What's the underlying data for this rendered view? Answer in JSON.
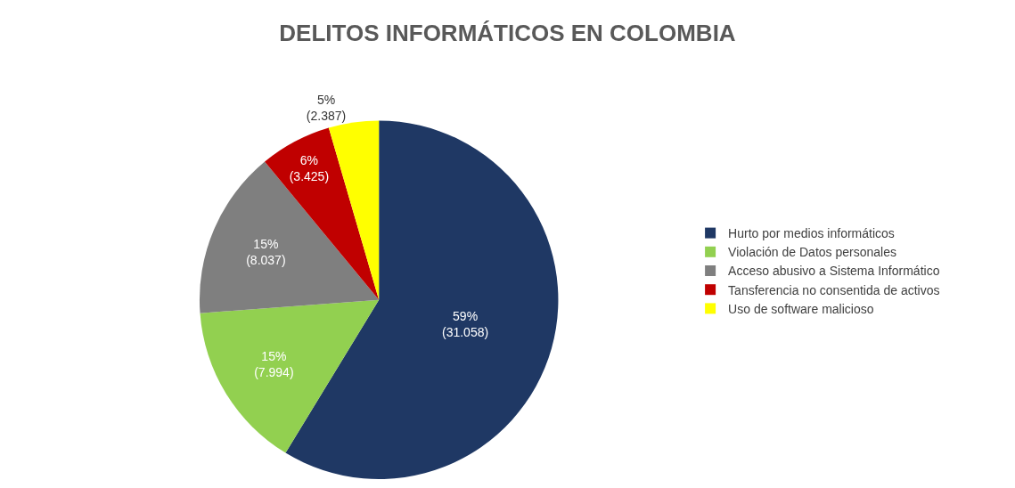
{
  "chart_data": {
    "type": "pie",
    "title": "DELITOS INFORMÁTICOS EN COLOMBIA",
    "categories": [
      "Hurto por medios informáticos",
      "Violación de Datos personales",
      "Acceso abusivo a Sistema Informático",
      "Tansferencia no consentida de activos",
      "Uso de software malicioso"
    ],
    "values": [
      31058,
      7994,
      8037,
      3425,
      2387
    ],
    "value_labels": [
      "59%\n(31.058)",
      "15%\n(7.994)",
      "15%\n(8.037)",
      "6%\n(3.425)",
      "5%\n(2.387)"
    ],
    "colors": [
      "#1f3864",
      "#92d050",
      "#7f7f7f",
      "#c00000",
      "#ffff00"
    ],
    "legend": "right"
  }
}
